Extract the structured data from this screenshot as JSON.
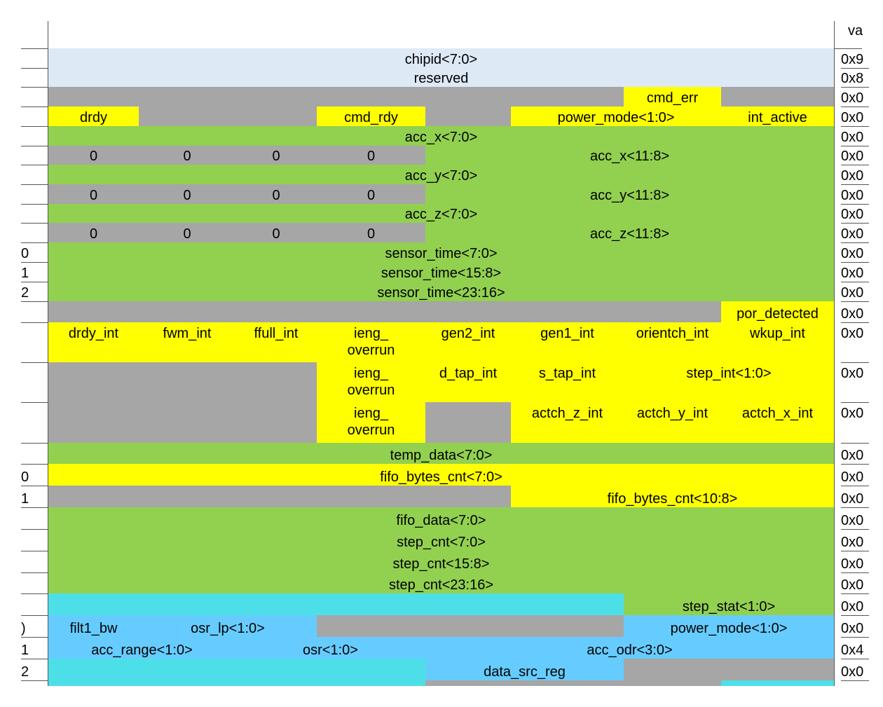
{
  "header": {
    "value": "va"
  },
  "rows": [
    {
      "value": "0x9",
      "cells": [
        {
          "span": 8,
          "fill": "#dde9f5",
          "text": "chipid<7:0>"
        }
      ]
    },
    {
      "value": "0x8",
      "cells": [
        {
          "span": 8,
          "fill": "#dde9f5",
          "text": "reserved"
        }
      ]
    },
    {
      "value": "0x0",
      "cells": [
        {
          "span": 1,
          "fill": "#a6a6a6"
        },
        {
          "span": 1,
          "fill": "#a6a6a6"
        },
        {
          "span": 1,
          "fill": "#a6a6a6"
        },
        {
          "span": 1,
          "fill": "#a6a6a6"
        },
        {
          "span": 1,
          "fill": "#a6a6a6"
        },
        {
          "span": 1,
          "fill": "#a6a6a6"
        },
        {
          "span": 1,
          "fill": "#ffff00",
          "text": "cmd_err"
        },
        {
          "span": 1,
          "fill": "#a6a6a6"
        }
      ]
    },
    {
      "value": "0x0",
      "cells": [
        {
          "span": 1,
          "fill": "#ffff00",
          "text": "drdy"
        },
        {
          "span": 1,
          "fill": "#a6a6a6"
        },
        {
          "span": 1,
          "fill": "#a6a6a6"
        },
        {
          "span": 1,
          "fill": "#ffff00",
          "text": "cmd_rdy"
        },
        {
          "span": 1,
          "fill": "#a6a6a6"
        },
        {
          "span": 2,
          "fill": "#ffff00",
          "text": "power_mode<1:0>"
        },
        {
          "span": 1,
          "fill": "#ffff00",
          "text": "int_active"
        }
      ]
    },
    {
      "value": "0x0",
      "cells": [
        {
          "span": 8,
          "fill": "#92d050",
          "text": "acc_x<7:0>"
        }
      ]
    },
    {
      "value": "0x0",
      "cells": [
        {
          "span": 1,
          "fill": "#a6a6a6",
          "text": "0"
        },
        {
          "span": 1,
          "fill": "#a6a6a6",
          "text": "0"
        },
        {
          "span": 1,
          "fill": "#a6a6a6",
          "text": "0"
        },
        {
          "span": 1,
          "fill": "#a6a6a6",
          "text": "0"
        },
        {
          "span": 4,
          "fill": "#92d050",
          "text": "acc_x<11:8>"
        }
      ]
    },
    {
      "value": "0x0",
      "cells": [
        {
          "span": 8,
          "fill": "#92d050",
          "text": "acc_y<7:0>"
        }
      ]
    },
    {
      "value": "0x0",
      "cells": [
        {
          "span": 1,
          "fill": "#a6a6a6",
          "text": "0"
        },
        {
          "span": 1,
          "fill": "#a6a6a6",
          "text": "0"
        },
        {
          "span": 1,
          "fill": "#a6a6a6",
          "text": "0"
        },
        {
          "span": 1,
          "fill": "#a6a6a6",
          "text": "0"
        },
        {
          "span": 4,
          "fill": "#92d050",
          "text": "acc_y<11:8>"
        }
      ]
    },
    {
      "value": "0x0",
      "cells": [
        {
          "span": 8,
          "fill": "#92d050",
          "text": "acc_z<7:0>"
        }
      ]
    },
    {
      "value": "0x0",
      "cells": [
        {
          "span": 1,
          "fill": "#a6a6a6",
          "text": "0"
        },
        {
          "span": 1,
          "fill": "#a6a6a6",
          "text": "0"
        },
        {
          "span": 1,
          "fill": "#a6a6a6",
          "text": "0"
        },
        {
          "span": 1,
          "fill": "#a6a6a6",
          "text": "0"
        },
        {
          "span": 4,
          "fill": "#92d050",
          "text": "acc_z<11:8>"
        }
      ]
    },
    {
      "left": "0",
      "value": "0x0",
      "cells": [
        {
          "span": 8,
          "fill": "#92d050",
          "text": "sensor_time<7:0>"
        }
      ]
    },
    {
      "left": "1",
      "value": "0x0",
      "cells": [
        {
          "span": 8,
          "fill": "#92d050",
          "text": "sensor_time<15:8>"
        }
      ]
    },
    {
      "left": "2",
      "value": "0x0",
      "cells": [
        {
          "span": 8,
          "fill": "#92d050",
          "text": "sensor_time<23:16>"
        }
      ]
    },
    {
      "value": "0x0",
      "cells": [
        {
          "span": 1,
          "fill": "#a6a6a6"
        },
        {
          "span": 1,
          "fill": "#a6a6a6"
        },
        {
          "span": 1,
          "fill": "#a6a6a6"
        },
        {
          "span": 1,
          "fill": "#a6a6a6"
        },
        {
          "span": 1,
          "fill": "#a6a6a6"
        },
        {
          "span": 1,
          "fill": "#a6a6a6"
        },
        {
          "span": 1,
          "fill": "#a6a6a6"
        },
        {
          "span": 1,
          "fill": "#ffff00",
          "text": "por_detected"
        }
      ]
    },
    {
      "value": "0x0",
      "cells": [
        {
          "span": 1,
          "fill": "#ffff00",
          "text": "drdy_int"
        },
        {
          "span": 1,
          "fill": "#ffff00",
          "text": "fwm_int"
        },
        {
          "span": 1,
          "fill": "#ffff00",
          "text": "ffull_int"
        },
        {
          "span": 1,
          "fill": "#ffff00",
          "text": "ieng_\noverrun"
        },
        {
          "span": 1,
          "fill": "#ffff00",
          "text": "gen2_int"
        },
        {
          "span": 1,
          "fill": "#ffff00",
          "text": "gen1_int"
        },
        {
          "span": 1,
          "fill": "#ffff00",
          "text": "orientch_int"
        },
        {
          "span": 1,
          "fill": "#ffff00",
          "text": "wkup_int"
        }
      ]
    },
    {
      "value": "0x0",
      "cells": [
        {
          "span": 1,
          "fill": "#a6a6a6"
        },
        {
          "span": 1,
          "fill": "#a6a6a6"
        },
        {
          "span": 1,
          "fill": "#a6a6a6"
        },
        {
          "span": 1,
          "fill": "#ffff00",
          "text": "ieng_\noverrun"
        },
        {
          "span": 1,
          "fill": "#ffff00",
          "text": "d_tap_int"
        },
        {
          "span": 1,
          "fill": "#ffff00",
          "text": "s_tap_int"
        },
        {
          "span": 2,
          "fill": "#ffff00",
          "text": "step_int<1:0>"
        }
      ]
    },
    {
      "value": "0x0",
      "cells": [
        {
          "span": 1,
          "fill": "#a6a6a6"
        },
        {
          "span": 1,
          "fill": "#a6a6a6"
        },
        {
          "span": 1,
          "fill": "#a6a6a6"
        },
        {
          "span": 1,
          "fill": "#ffff00",
          "text": "ieng_\noverrun"
        },
        {
          "span": 1,
          "fill": "#a6a6a6"
        },
        {
          "span": 1,
          "fill": "#ffff00",
          "text": "actch_z_int"
        },
        {
          "span": 1,
          "fill": "#ffff00",
          "text": "actch_y_int"
        },
        {
          "span": 1,
          "fill": "#ffff00",
          "text": "actch_x_int"
        }
      ]
    },
    {
      "value": "0x0",
      "cells": [
        {
          "span": 8,
          "fill": "#92d050",
          "text": "temp_data<7:0>"
        }
      ]
    },
    {
      "left": "0",
      "value": "0x0",
      "cells": [
        {
          "span": 8,
          "fill": "#ffff00",
          "text": "fifo_bytes_cnt<7:0>"
        }
      ]
    },
    {
      "left": "1",
      "value": "0x0",
      "cells": [
        {
          "span": 1,
          "fill": "#a6a6a6"
        },
        {
          "span": 1,
          "fill": "#a6a6a6"
        },
        {
          "span": 1,
          "fill": "#a6a6a6"
        },
        {
          "span": 1,
          "fill": "#a6a6a6"
        },
        {
          "span": 1,
          "fill": "#a6a6a6"
        },
        {
          "span": 3,
          "fill": "#ffff00",
          "text": "fifo_bytes_cnt<10:8>"
        }
      ]
    },
    {
      "value": "0x0",
      "cells": [
        {
          "span": 8,
          "fill": "#92d050",
          "text": "fifo_data<7:0>"
        }
      ]
    },
    {
      "value": "0x0",
      "cells": [
        {
          "span": 8,
          "fill": "#92d050",
          "text": "step_cnt<7:0>"
        }
      ]
    },
    {
      "value": "0x0",
      "cells": [
        {
          "span": 8,
          "fill": "#92d050",
          "text": "step_cnt<15:8>"
        }
      ]
    },
    {
      "value": "0x0",
      "cells": [
        {
          "span": 8,
          "fill": "#92d050",
          "text": "step_cnt<23:16>"
        }
      ]
    },
    {
      "value": "0x0",
      "cells": [
        {
          "span": 1,
          "fill": "#4ddfe8"
        },
        {
          "span": 1,
          "fill": "#4ddfe8"
        },
        {
          "span": 1,
          "fill": "#4ddfe8"
        },
        {
          "span": 1,
          "fill": "#4ddfe8"
        },
        {
          "span": 1,
          "fill": "#4ddfe8"
        },
        {
          "span": 1,
          "fill": "#4ddfe8"
        },
        {
          "span": 2,
          "fill": "#92d050",
          "text": "step_stat<1:0>"
        }
      ]
    },
    {
      "left": ")",
      "value": "0x0",
      "cells": [
        {
          "span": 1,
          "fill": "#66ccff",
          "text": "filt1_bw"
        },
        {
          "span": 2,
          "fill": "#66ccff",
          "text": "osr_lp<1:0>"
        },
        {
          "span": 1,
          "fill": "#a6a6a6"
        },
        {
          "span": 1,
          "fill": "#a6a6a6"
        },
        {
          "span": 1,
          "fill": "#a6a6a6"
        },
        {
          "span": 2,
          "fill": "#66ccff",
          "text": "power_mode<1:0>"
        }
      ]
    },
    {
      "left": "1",
      "value": "0x4",
      "cells": [
        {
          "span": 2,
          "fill": "#66ccff",
          "text": "acc_range<1:0>"
        },
        {
          "span": 2,
          "fill": "#66ccff",
          "text": "osr<1:0>"
        },
        {
          "span": 4,
          "fill": "#66ccff",
          "text": "acc_odr<3:0>"
        }
      ]
    },
    {
      "left": "2",
      "value": "0x0",
      "cells": [
        {
          "span": 1,
          "fill": "#4ddfe8"
        },
        {
          "span": 1,
          "fill": "#4ddfe8"
        },
        {
          "span": 1,
          "fill": "#4ddfe8"
        },
        {
          "span": 1,
          "fill": "#4ddfe8"
        },
        {
          "span": 2,
          "fill": "#66ccff",
          "text": "data_src_reg"
        },
        {
          "span": 1,
          "fill": "#a6a6a6"
        },
        {
          "span": 1,
          "fill": "#a6a6a6"
        }
      ]
    },
    {
      "cells": [
        {
          "span": 1,
          "fill": "#4ddfe8"
        },
        {
          "span": 1,
          "fill": "#4ddfe8"
        },
        {
          "span": 1,
          "fill": "#4ddfe8"
        },
        {
          "span": 1,
          "fill": "#4ddfe8"
        },
        {
          "span": 1,
          "fill": "#a6a6a6"
        },
        {
          "span": 1,
          "fill": "#a6a6a6"
        },
        {
          "span": 1,
          "fill": "#a6a6a6"
        },
        {
          "span": 1,
          "fill": "#4ddfe8"
        }
      ]
    }
  ]
}
